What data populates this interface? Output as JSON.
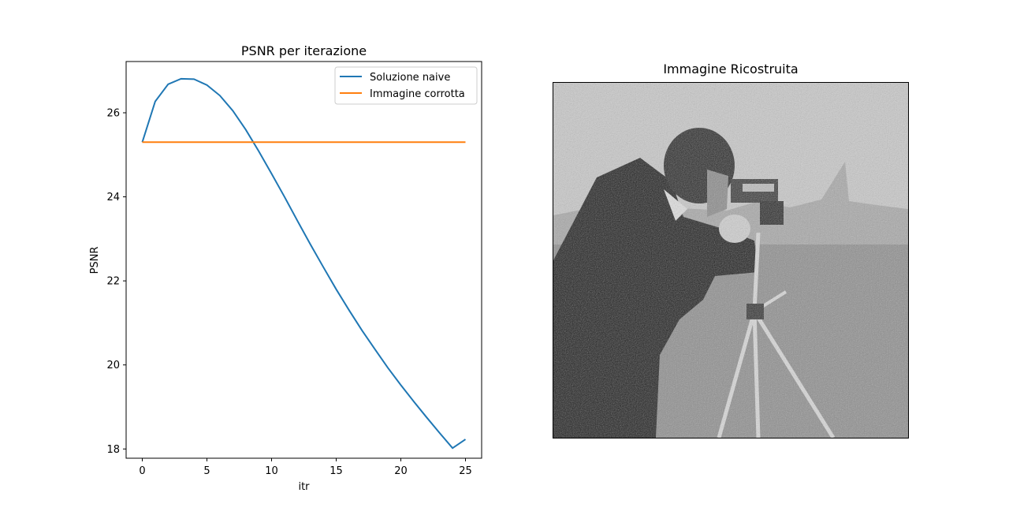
{
  "chart_data": [
    {
      "type": "line",
      "title": "PSNR per iterazione",
      "xlabel": "itr",
      "ylabel": "PSNR",
      "xlim": [
        -1.25,
        26.25
      ],
      "ylim": [
        17.78,
        27.22
      ],
      "xticks": [
        0,
        5,
        10,
        15,
        20,
        25
      ],
      "yticks": [
        18,
        20,
        22,
        24,
        26
      ],
      "grid": false,
      "legend_position": "top-right",
      "series": [
        {
          "name": "Soluzione naive",
          "color": "#1f77b4",
          "x": [
            0,
            1,
            2,
            3,
            4,
            5,
            6,
            7,
            8,
            9,
            10,
            11,
            12,
            13,
            14,
            15,
            16,
            17,
            18,
            19,
            20,
            21,
            22,
            23,
            24,
            25
          ],
          "y": [
            25.3,
            26.27,
            26.68,
            26.81,
            26.8,
            26.66,
            26.41,
            26.05,
            25.6,
            25.09,
            24.55,
            24.0,
            23.43,
            22.87,
            22.33,
            21.8,
            21.3,
            20.82,
            20.37,
            19.93,
            19.52,
            19.13,
            18.75,
            18.38,
            18.02,
            18.23
          ]
        },
        {
          "name": "Immagine corrotta",
          "color": "#ff7f0e",
          "x": [
            0,
            25
          ],
          "y": [
            25.3,
            25.3
          ]
        }
      ]
    },
    {
      "type": "image",
      "title": "Immagine Ricostruita",
      "description_colormap": "gray"
    }
  ]
}
